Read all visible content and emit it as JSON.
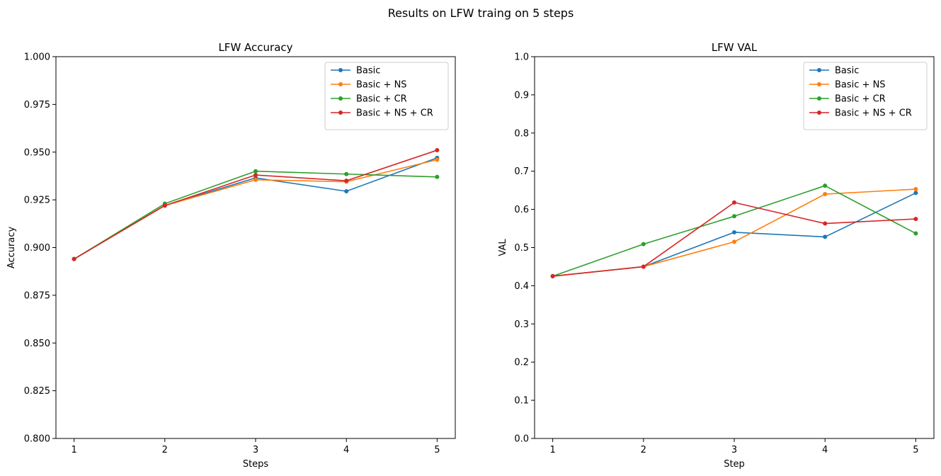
{
  "figure": {
    "suptitle": "Results on LFW traing on 5 steps"
  },
  "chart_data": [
    {
      "type": "line",
      "title": "LFW Accuracy",
      "xlabel": "Steps",
      "ylabel": "Accuracy",
      "x": [
        1,
        2,
        3,
        4,
        5
      ],
      "xticks": [
        "1",
        "2",
        "3",
        "4",
        "5"
      ],
      "xlim": [
        0.8,
        5.2
      ],
      "ylim": [
        0.8,
        1.0
      ],
      "yticks": [
        "0.800",
        "0.825",
        "0.850",
        "0.875",
        "0.900",
        "0.925",
        "0.950",
        "0.975",
        "1.000"
      ],
      "grid": false,
      "legend_position": "top-right",
      "series": [
        {
          "name": "Basic",
          "color": "#1f77b4",
          "values": [
            0.894,
            0.922,
            0.9365,
            0.9295,
            0.947
          ]
        },
        {
          "name": "Basic + NS",
          "color": "#ff7f0e",
          "values": [
            0.894,
            0.922,
            0.9355,
            0.9345,
            0.946
          ]
        },
        {
          "name": "Basic + CR",
          "color": "#2ca02c",
          "values": [
            0.894,
            0.923,
            0.94,
            0.9385,
            0.937
          ]
        },
        {
          "name": "Basic + NS + CR",
          "color": "#d62728",
          "values": [
            0.894,
            0.922,
            0.938,
            0.935,
            0.951
          ]
        }
      ]
    },
    {
      "type": "line",
      "title": "LFW VAL",
      "xlabel": "Step",
      "ylabel": "VAL",
      "x": [
        1,
        2,
        3,
        4,
        5
      ],
      "xticks": [
        "1",
        "2",
        "3",
        "4",
        "5"
      ],
      "xlim": [
        0.8,
        5.2
      ],
      "ylim": [
        0.0,
        1.0
      ],
      "yticks": [
        "0.0",
        "0.1",
        "0.2",
        "0.3",
        "0.4",
        "0.5",
        "0.6",
        "0.7",
        "0.8",
        "0.9",
        "1.0"
      ],
      "grid": false,
      "legend_position": "top-right",
      "series": [
        {
          "name": "Basic",
          "color": "#1f77b4",
          "values": [
            0.425,
            0.45,
            0.54,
            0.528,
            0.643
          ]
        },
        {
          "name": "Basic + NS",
          "color": "#ff7f0e",
          "values": [
            0.425,
            0.45,
            0.515,
            0.64,
            0.653
          ]
        },
        {
          "name": "Basic + CR",
          "color": "#2ca02c",
          "values": [
            0.425,
            0.509,
            0.582,
            0.662,
            0.537
          ]
        },
        {
          "name": "Basic + NS + CR",
          "color": "#d62728",
          "values": [
            0.425,
            0.45,
            0.618,
            0.563,
            0.575
          ]
        }
      ]
    }
  ]
}
